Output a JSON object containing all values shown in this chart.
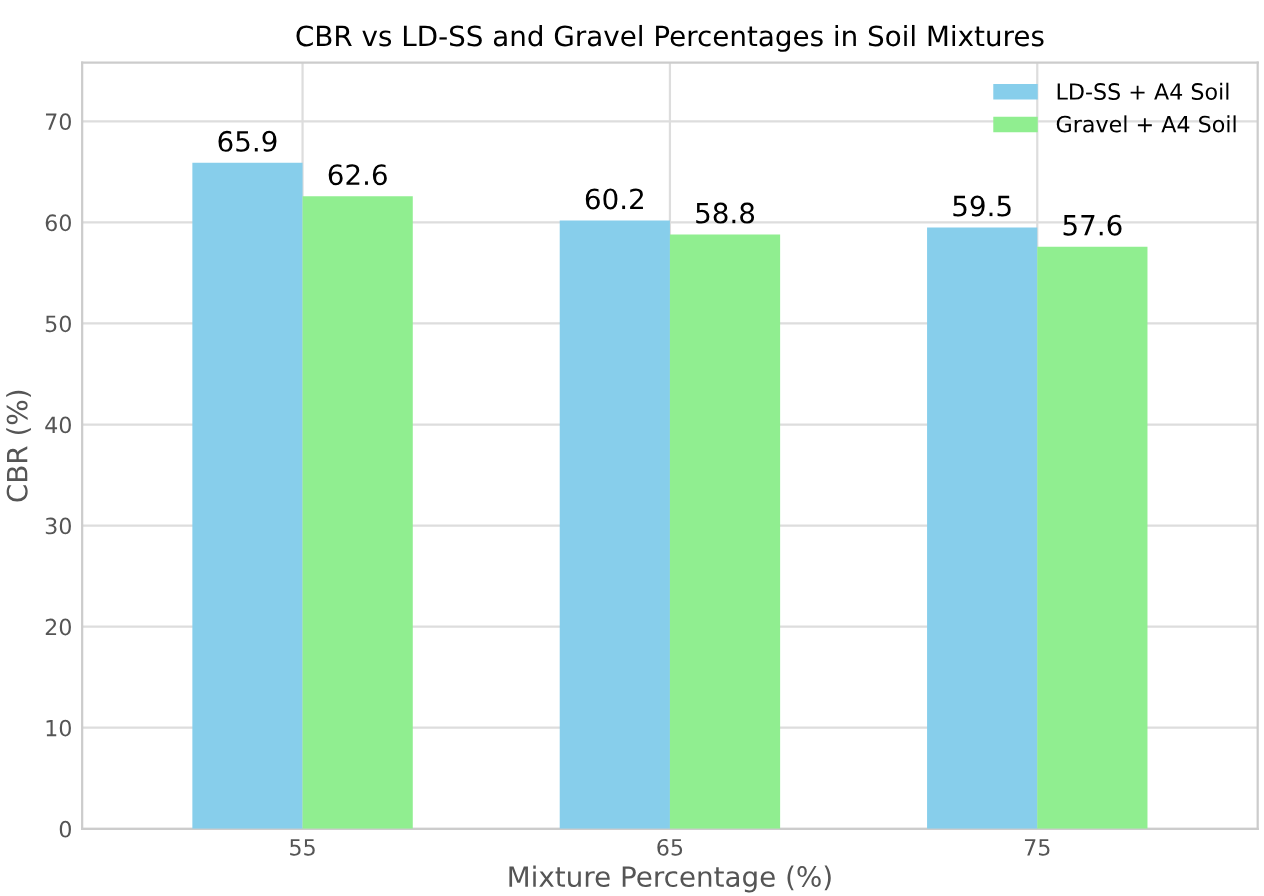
{
  "chart_data": {
    "type": "bar",
    "title": "CBR vs LD-SS and Gravel Percentages in Soil Mixtures",
    "xlabel": "Mixture Percentage (%)",
    "ylabel": "CBR (%)",
    "categories": [
      "55",
      "65",
      "75"
    ],
    "series": [
      {
        "name": "LD-SS + A4 Soil",
        "color": "#87ceeb",
        "values": [
          65.9,
          60.2,
          59.5
        ]
      },
      {
        "name": "Gravel + A4 Soil",
        "color": "#90ee90",
        "values": [
          62.6,
          58.8,
          57.6
        ]
      }
    ],
    "ylim": [
      0,
      75.8
    ],
    "yticks": [
      0,
      10,
      20,
      30,
      40,
      50,
      60,
      70
    ],
    "grid": true,
    "legend": "top right",
    "data_labels": true
  }
}
